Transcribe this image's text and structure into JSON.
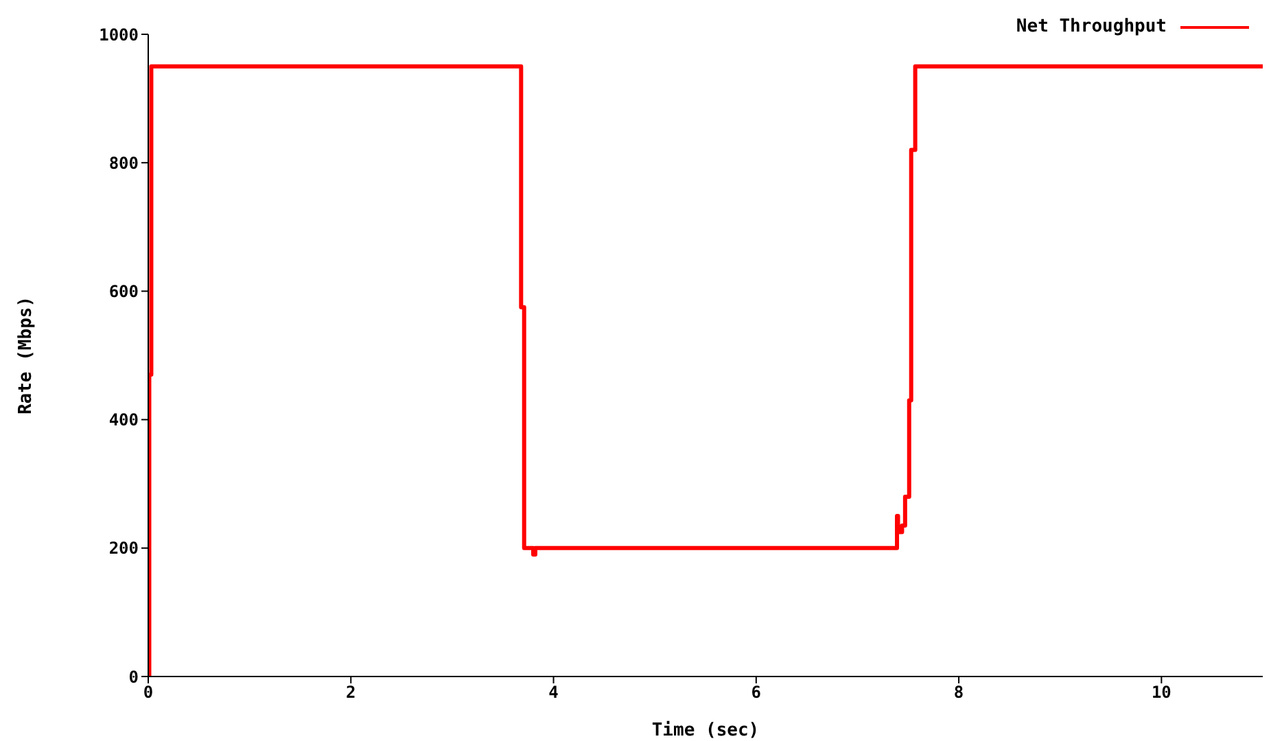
{
  "chart_data": {
    "type": "step",
    "xlabel": "Time (sec)",
    "ylabel": "Rate (Mbps)",
    "xlim": [
      0,
      11
    ],
    "xticks": [
      0,
      2,
      4,
      6,
      8,
      10
    ],
    "ylim": [
      0,
      1000
    ],
    "yticks": [
      0,
      200,
      400,
      600,
      800,
      1000
    ],
    "grid": false,
    "legend": "top right",
    "series": [
      {
        "name": "Net Throughput",
        "color": "#ff0000",
        "x": [
          0,
          0.01,
          0.03,
          3.68,
          3.71,
          3.8,
          3.82,
          7.39,
          7.4,
          7.44,
          7.47,
          7.51,
          7.53,
          7.57,
          11
        ],
        "values": [
          0,
          470,
          950,
          575,
          200,
          190,
          200,
          250,
          225,
          235,
          280,
          430,
          820,
          950,
          950
        ]
      }
    ]
  }
}
